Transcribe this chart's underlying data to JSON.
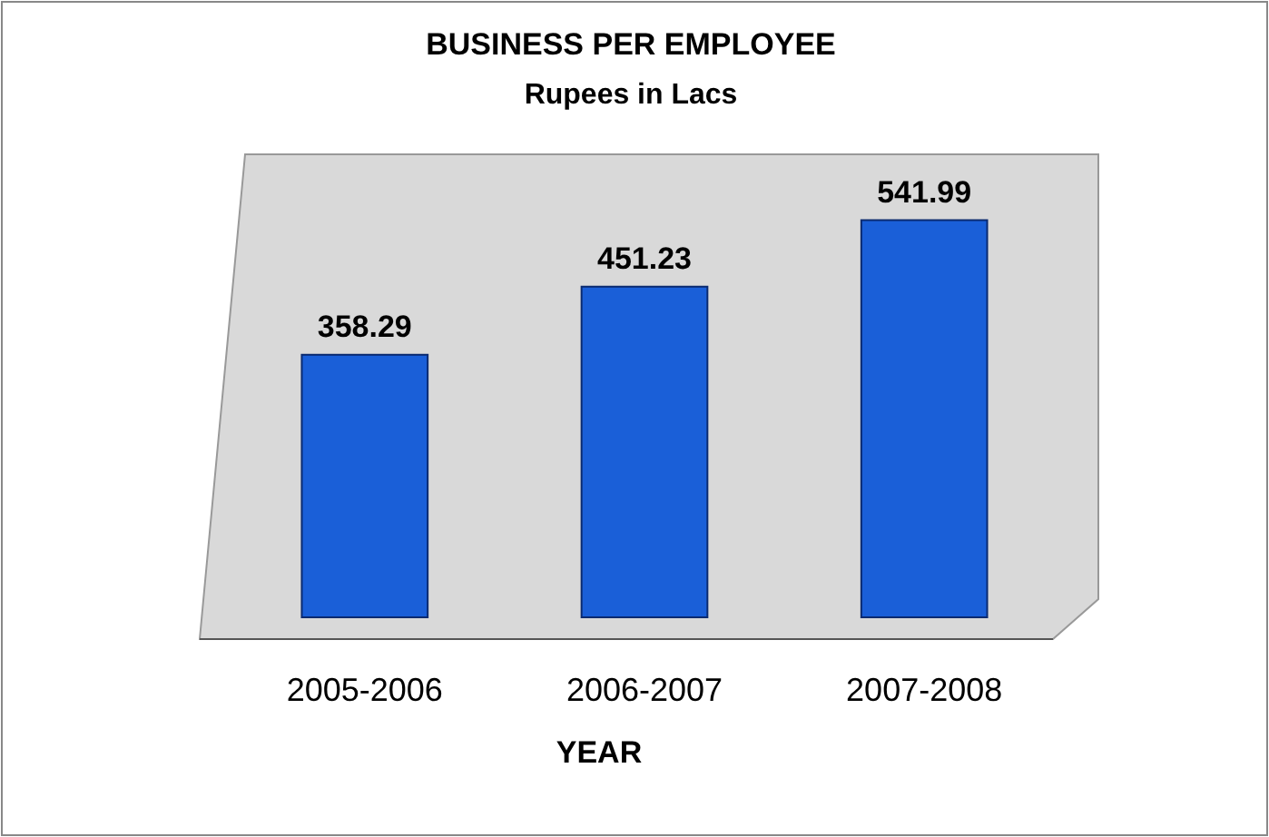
{
  "chart_data": {
    "type": "bar",
    "title": "BUSINESS PER EMPLOYEE",
    "subtitle": "Rupees in Lacs",
    "xlabel": "YEAR",
    "categories": [
      "2005-2006",
      "2006-2007",
      "2007-2008"
    ],
    "values": [
      358.29,
      451.23,
      541.99
    ],
    "color": "#1a5fd8",
    "data_labels": true
  }
}
